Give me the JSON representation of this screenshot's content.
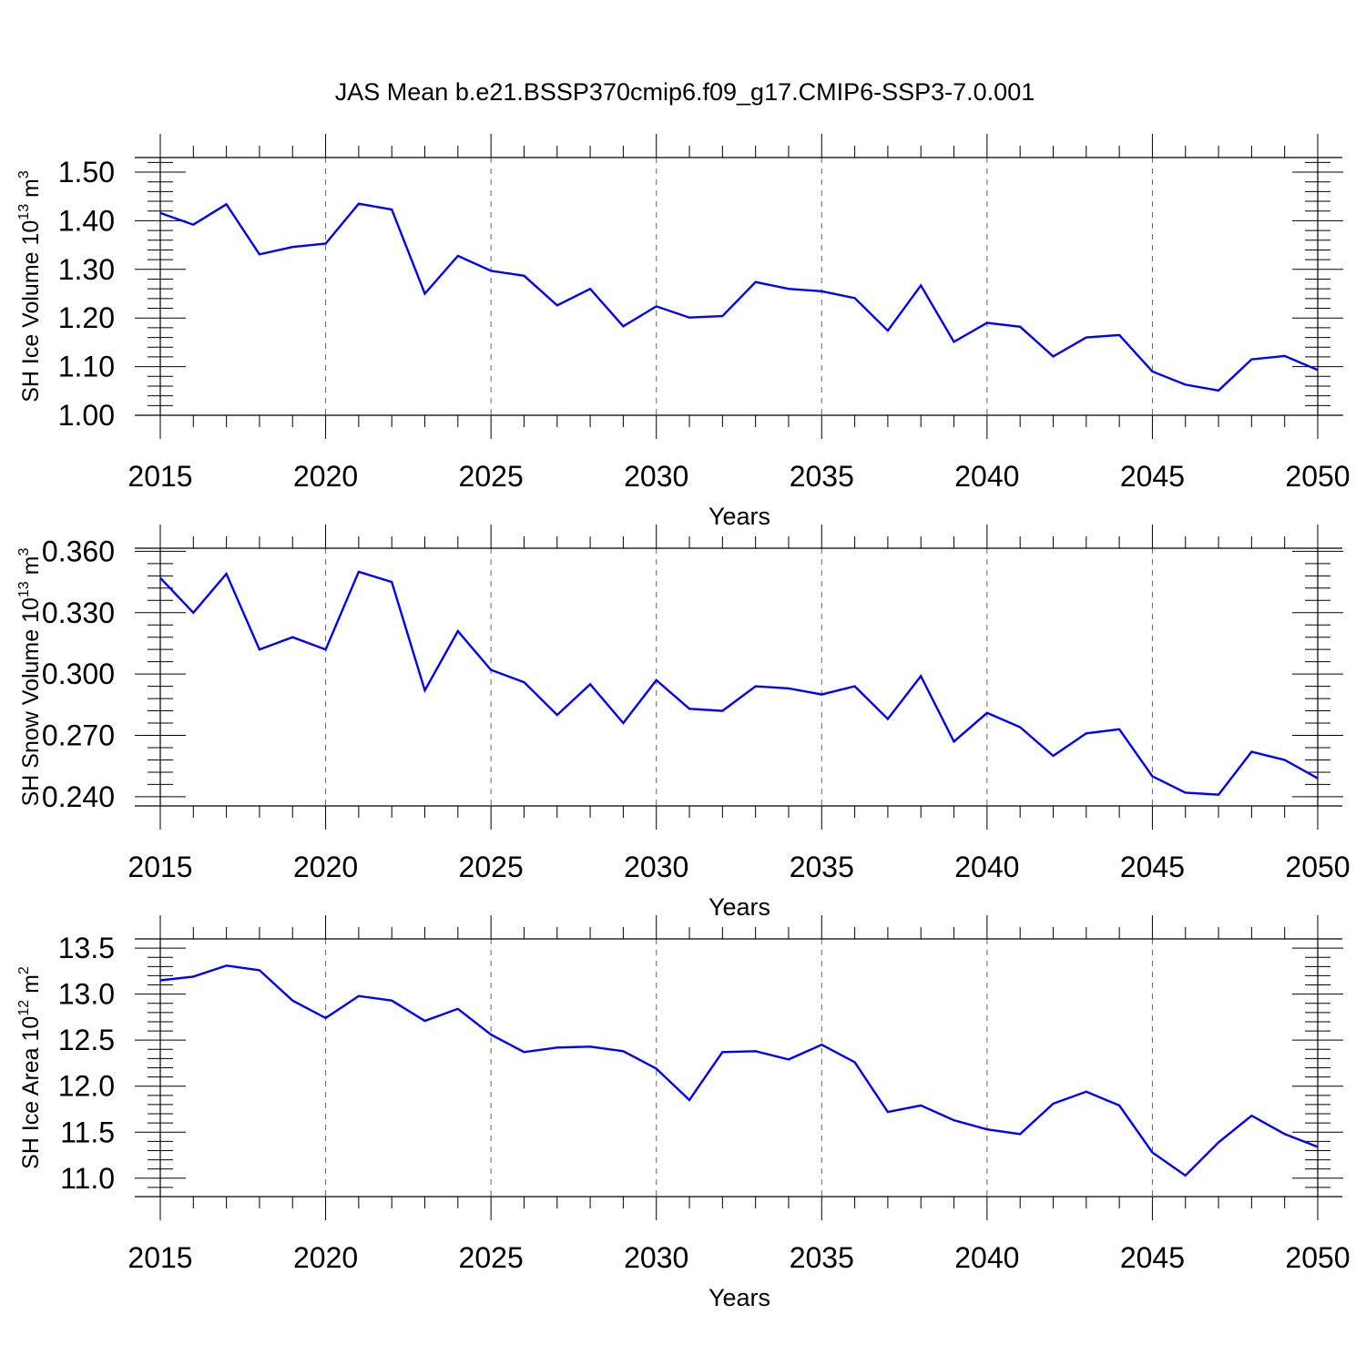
{
  "chart_data": {
    "title": "JAS Mean b.e21.BSSP370cmip6.f09_g17.CMIP6-SSP3-7.0.001",
    "colors": {
      "line": "#0000ff",
      "axes": "#000000",
      "grid": "#666666"
    },
    "panels": [
      {
        "type": "line",
        "xlabel": "Years",
        "ylabel": {
          "text": "SH Ice Volume 10",
          "sup": "13",
          "unit": " m",
          "unit_sup": "3"
        },
        "xlim": [
          2015,
          2050
        ],
        "ylim": [
          1.0,
          1.53
        ],
        "xticks": [
          2015,
          2020,
          2025,
          2030,
          2035,
          2040,
          2045,
          2050
        ],
        "yticks": [
          1.0,
          1.1,
          1.2,
          1.3,
          1.4,
          1.5
        ],
        "ytick_labels": [
          "1.00",
          "1.10",
          "1.20",
          "1.30",
          "1.40",
          "1.50"
        ],
        "grid": "x-dashed",
        "series": [
          {
            "x": [
              2015,
              2016,
              2017,
              2018,
              2019,
              2020,
              2021,
              2022,
              2023,
              2024,
              2025,
              2026,
              2027,
              2028,
              2029,
              2030,
              2031,
              2032,
              2033,
              2034,
              2035,
              2036,
              2037,
              2038,
              2039,
              2040,
              2041,
              2042,
              2043,
              2044,
              2045,
              2046,
              2047,
              2048,
              2049,
              2050
            ],
            "y": [
              1.416,
              1.392,
              1.434,
              1.331,
              1.346,
              1.353,
              1.435,
              1.423,
              1.25,
              1.328,
              1.297,
              1.287,
              1.226,
              1.26,
              1.183,
              1.224,
              1.201,
              1.204,
              1.274,
              1.26,
              1.255,
              1.241,
              1.174,
              1.267,
              1.151,
              1.19,
              1.182,
              1.121,
              1.16,
              1.165,
              1.09,
              1.063,
              1.051,
              1.115,
              1.122,
              1.093
            ]
          }
        ]
      },
      {
        "type": "line",
        "xlabel": "Years",
        "ylabel": {
          "text": "SH Snow Volume 10",
          "sup": "13",
          "unit": " m",
          "unit_sup": "3"
        },
        "xlim": [
          2015,
          2050
        ],
        "ylim": [
          0.2355,
          0.3615
        ],
        "xticks": [
          2015,
          2020,
          2025,
          2030,
          2035,
          2040,
          2045,
          2050
        ],
        "yticks": [
          0.24,
          0.27,
          0.3,
          0.33,
          0.36
        ],
        "ytick_labels": [
          "0.240",
          "0.270",
          "0.300",
          "0.330",
          "0.360"
        ],
        "grid": "x-dashed",
        "series": [
          {
            "x": [
              2015,
              2016,
              2017,
              2018,
              2019,
              2020,
              2021,
              2022,
              2023,
              2024,
              2025,
              2026,
              2027,
              2028,
              2029,
              2030,
              2031,
              2032,
              2033,
              2034,
              2035,
              2036,
              2037,
              2038,
              2039,
              2040,
              2041,
              2042,
              2043,
              2044,
              2045,
              2046,
              2047,
              2048,
              2049,
              2050
            ],
            "y": [
              0.347,
              0.33,
              0.349,
              0.312,
              0.318,
              0.312,
              0.35,
              0.345,
              0.292,
              0.321,
              0.302,
              0.296,
              0.28,
              0.295,
              0.276,
              0.297,
              0.283,
              0.282,
              0.294,
              0.293,
              0.29,
              0.294,
              0.278,
              0.299,
              0.267,
              0.281,
              0.274,
              0.26,
              0.271,
              0.273,
              0.25,
              0.242,
              0.241,
              0.262,
              0.258,
              0.249
            ]
          }
        ]
      },
      {
        "type": "line",
        "xlabel": "Years",
        "ylabel": {
          "text": "SH Ice Area 10",
          "sup": "12",
          "unit": " m",
          "unit_sup": "2"
        },
        "xlim": [
          2015,
          2050
        ],
        "ylim": [
          10.8,
          13.6
        ],
        "xticks": [
          2015,
          2020,
          2025,
          2030,
          2035,
          2040,
          2045,
          2050
        ],
        "yticks": [
          11.0,
          11.5,
          12.0,
          12.5,
          13.0,
          13.5
        ],
        "ytick_labels": [
          "11.0",
          "11.5",
          "12.0",
          "12.5",
          "13.0",
          "13.5"
        ],
        "grid": "x-dashed",
        "series": [
          {
            "x": [
              2015,
              2016,
              2017,
              2018,
              2019,
              2020,
              2021,
              2022,
              2023,
              2024,
              2025,
              2026,
              2027,
              2028,
              2029,
              2030,
              2031,
              2032,
              2033,
              2034,
              2035,
              2036,
              2037,
              2038,
              2039,
              2040,
              2041,
              2042,
              2043,
              2044,
              2045,
              2046,
              2047,
              2048,
              2049,
              2050
            ],
            "y": [
              13.15,
              13.19,
              13.31,
              13.26,
              12.93,
              12.74,
              12.98,
              12.93,
              12.71,
              12.84,
              12.56,
              12.37,
              12.42,
              12.43,
              12.38,
              12.19,
              11.85,
              12.37,
              12.38,
              12.29,
              12.45,
              12.26,
              11.72,
              11.79,
              11.63,
              11.53,
              11.48,
              11.81,
              11.94,
              11.79,
              11.28,
              11.03,
              11.39,
              11.68,
              11.48,
              11.34
            ]
          }
        ]
      }
    ]
  }
}
